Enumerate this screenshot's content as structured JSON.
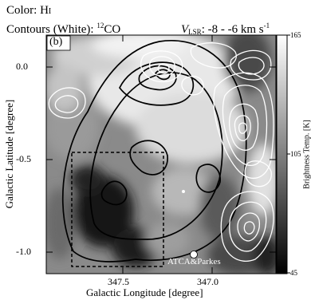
{
  "header": {
    "color_prefix": "Color: H",
    "color_suffix": "I",
    "contours_prefix": "Contours (White): ",
    "contours_mass": "12",
    "contours_species": "CO",
    "vlsr_symbol": "V",
    "vlsr_sub": "LSR",
    "vlsr_range": ": -8 - -6 km s",
    "vlsr_exp": "-1"
  },
  "panel_label": "(b)",
  "telescope_label": "ATCA&Parkes",
  "colorbar": {
    "label": "Brightness Temp. [K]",
    "ticks": [
      "165",
      "105",
      "45"
    ],
    "range": [
      45,
      165
    ],
    "colormap": "grayscale, white=high"
  },
  "chart_data": {
    "type": "heatmap",
    "title": "",
    "xlabel": "Galactic Longitude [degree]",
    "ylabel": "Galactic Latitude [degree]",
    "x_ticks": [
      "347.5",
      "347.0"
    ],
    "y_ticks": [
      "0.0",
      "-0.5",
      "-1.0"
    ],
    "xlim": [
      347.95,
      346.65
    ],
    "ylim": [
      -1.15,
      0.15
    ],
    "x_axis_reversed": true,
    "color_quantity": "HI brightness temperature",
    "color_unit": "K",
    "color_range": [
      45,
      165
    ],
    "contours_black": "HI (ATCA&Parkes)",
    "contours_white": "12CO",
    "velocity_range_kms": [
      -8,
      -6
    ],
    "dashed_box": {
      "l": [
        347.78,
        347.38
      ],
      "b": [
        -0.61,
        -1.09
      ]
    },
    "marker": {
      "l": 347.05,
      "b": -1.03
    }
  }
}
